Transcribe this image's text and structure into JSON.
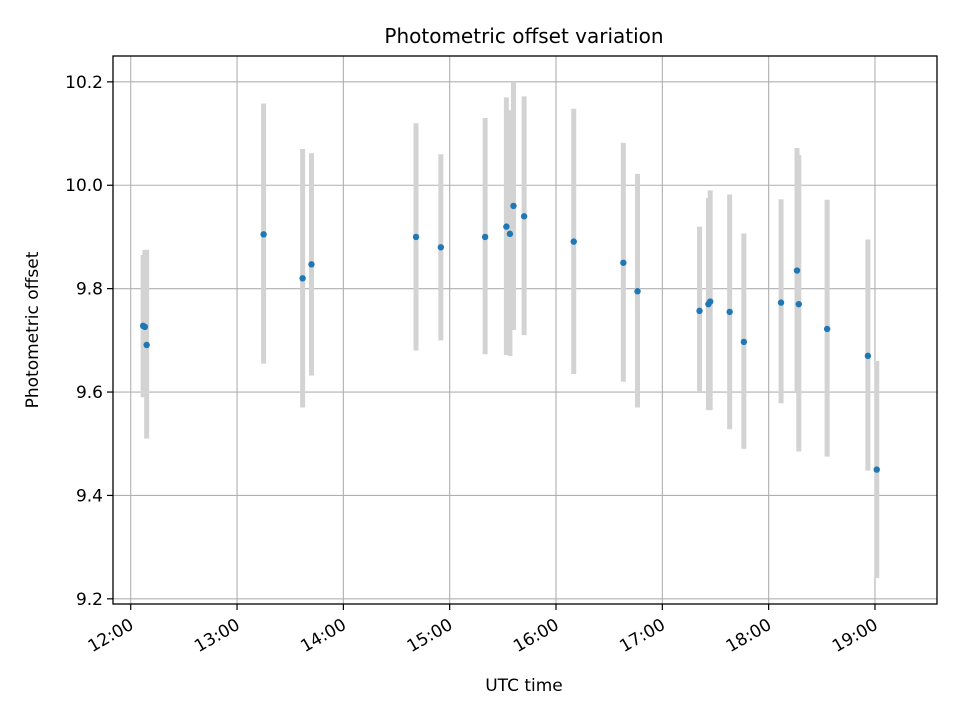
{
  "chart_data": {
    "type": "scatter",
    "title": "Photometric offset variation",
    "xlabel": "UTC time",
    "ylabel": "Photometric offset",
    "x_tick_labels": [
      "12:00",
      "13:00",
      "14:00",
      "15:00",
      "16:00",
      "17:00",
      "18:00",
      "19:00"
    ],
    "y_tick_labels": [
      "9.2",
      "9.4",
      "9.6",
      "9.8",
      "10.0",
      "10.2"
    ],
    "xlim": [
      "11:50",
      "19:35"
    ],
    "ylim": [
      9.19,
      10.25
    ],
    "grid": true,
    "marker_color": "#1f77b4",
    "errorbar_color": "#d3d3d3",
    "points": [
      {
        "x": "12:07",
        "y": 9.728,
        "y_low": 9.59,
        "y_high": 9.865
      },
      {
        "x": "12:08",
        "y": 9.726,
        "y_low": 9.59,
        "y_high": 9.875
      },
      {
        "x": "12:09",
        "y": 9.691,
        "y_low": 9.51,
        "y_high": 9.875
      },
      {
        "x": "13:15",
        "y": 9.905,
        "y_low": 9.655,
        "y_high": 10.158
      },
      {
        "x": "13:37",
        "y": 9.82,
        "y_low": 9.57,
        "y_high": 10.07
      },
      {
        "x": "13:42",
        "y": 9.847,
        "y_low": 9.632,
        "y_high": 10.062
      },
      {
        "x": "14:41",
        "y": 9.9,
        "y_low": 9.68,
        "y_high": 10.12
      },
      {
        "x": "14:55",
        "y": 9.88,
        "y_low": 9.7,
        "y_high": 10.06
      },
      {
        "x": "15:20",
        "y": 9.9,
        "y_low": 9.673,
        "y_high": 10.13
      },
      {
        "x": "15:32",
        "y": 9.92,
        "y_low": 9.672,
        "y_high": 10.17
      },
      {
        "x": "15:34",
        "y": 9.906,
        "y_low": 9.67,
        "y_high": 10.145
      },
      {
        "x": "15:36",
        "y": 9.96,
        "y_low": 9.72,
        "y_high": 10.2
      },
      {
        "x": "15:42",
        "y": 9.94,
        "y_low": 9.71,
        "y_high": 10.172
      },
      {
        "x": "16:10",
        "y": 9.891,
        "y_low": 9.635,
        "y_high": 10.148
      },
      {
        "x": "16:38",
        "y": 9.85,
        "y_low": 9.62,
        "y_high": 10.082
      },
      {
        "x": "16:46",
        "y": 9.795,
        "y_low": 9.57,
        "y_high": 10.022
      },
      {
        "x": "17:21",
        "y": 9.757,
        "y_low": 9.6,
        "y_high": 9.92
      },
      {
        "x": "17:26",
        "y": 9.77,
        "y_low": 9.565,
        "y_high": 9.975
      },
      {
        "x": "17:27",
        "y": 9.775,
        "y_low": 9.565,
        "y_high": 9.99
      },
      {
        "x": "17:38",
        "y": 9.755,
        "y_low": 9.528,
        "y_high": 9.982
      },
      {
        "x": "17:46",
        "y": 9.697,
        "y_low": 9.49,
        "y_high": 9.907
      },
      {
        "x": "18:07",
        "y": 9.773,
        "y_low": 9.578,
        "y_high": 9.973
      },
      {
        "x": "18:16",
        "y": 9.835,
        "y_low": 9.6,
        "y_high": 10.072
      },
      {
        "x": "18:17",
        "y": 9.77,
        "y_low": 9.485,
        "y_high": 10.058
      },
      {
        "x": "18:33",
        "y": 9.722,
        "y_low": 9.475,
        "y_high": 9.972
      },
      {
        "x": "18:56",
        "y": 9.67,
        "y_low": 9.448,
        "y_high": 9.895
      },
      {
        "x": "19:01",
        "y": 9.45,
        "y_low": 9.24,
        "y_high": 9.66
      }
    ]
  }
}
